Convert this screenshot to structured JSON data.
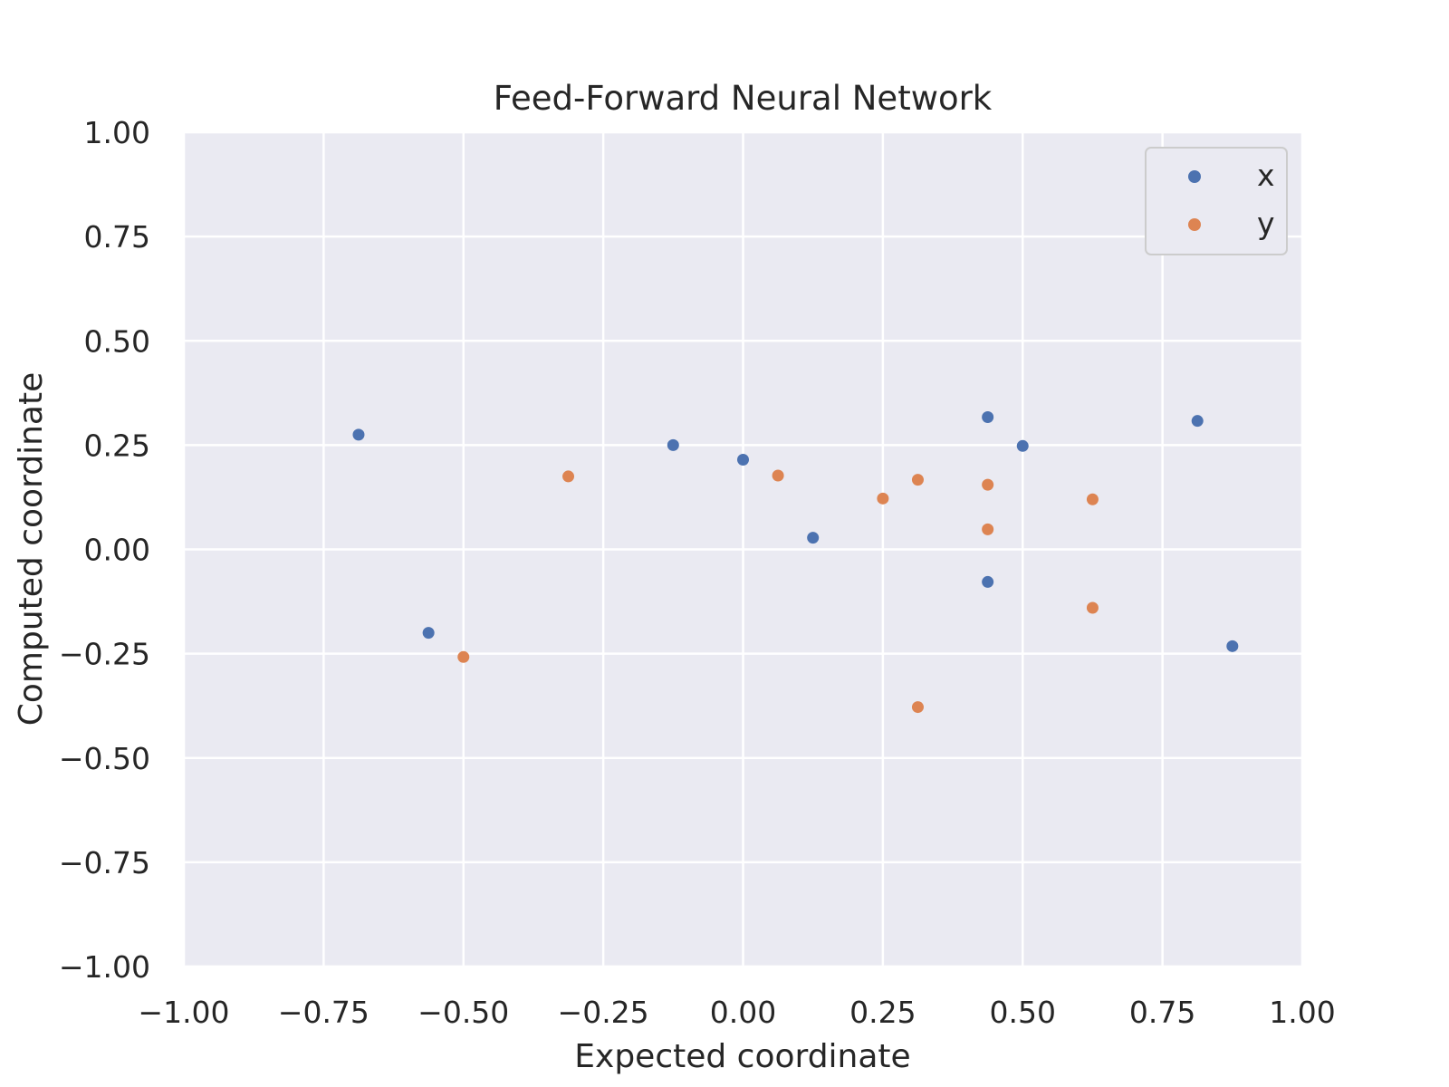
{
  "chart_data": {
    "type": "scatter",
    "title": "Feed-Forward Neural Network",
    "xlabel": "Expected coordinate",
    "ylabel": "Computed coordinate",
    "xlim": [
      -1.0,
      1.0
    ],
    "ylim": [
      -1.0,
      1.0
    ],
    "xticks": [
      -1.0,
      -0.75,
      -0.5,
      -0.25,
      0.0,
      0.25,
      0.5,
      0.75,
      1.0
    ],
    "yticks": [
      -1.0,
      -0.75,
      -0.5,
      -0.25,
      0.0,
      0.25,
      0.5,
      0.75,
      1.0
    ],
    "xtick_labels": [
      "−1.00",
      "−0.75",
      "−0.50",
      "−0.25",
      "0.00",
      "0.25",
      "0.50",
      "0.75",
      "1.00"
    ],
    "ytick_labels": [
      "−1.00",
      "−0.75",
      "−0.50",
      "−0.25",
      "0.00",
      "0.25",
      "0.50",
      "0.75",
      "1.00"
    ],
    "grid": true,
    "legend_position": "top-right",
    "background_color": "#eaeaf2",
    "grid_color": "#ffffff",
    "series": [
      {
        "name": "x",
        "color": "#4c72b0",
        "points": [
          [
            -0.6875,
            0.275
          ],
          [
            -0.5625,
            -0.2
          ],
          [
            -0.125,
            0.25
          ],
          [
            0.0,
            0.215
          ],
          [
            0.125,
            0.028
          ],
          [
            0.4375,
            0.317
          ],
          [
            0.4375,
            -0.078
          ],
          [
            0.5,
            0.248
          ],
          [
            0.8125,
            0.308
          ],
          [
            0.875,
            -0.232
          ]
        ]
      },
      {
        "name": "y",
        "color": "#dd8452",
        "points": [
          [
            -0.5,
            -0.258
          ],
          [
            -0.3125,
            0.175
          ],
          [
            0.0625,
            0.177
          ],
          [
            0.25,
            0.122
          ],
          [
            0.3125,
            0.167
          ],
          [
            0.3125,
            -0.378
          ],
          [
            0.4375,
            0.155
          ],
          [
            0.4375,
            0.048
          ],
          [
            0.625,
            0.12
          ],
          [
            0.625,
            -0.14
          ]
        ]
      }
    ]
  }
}
